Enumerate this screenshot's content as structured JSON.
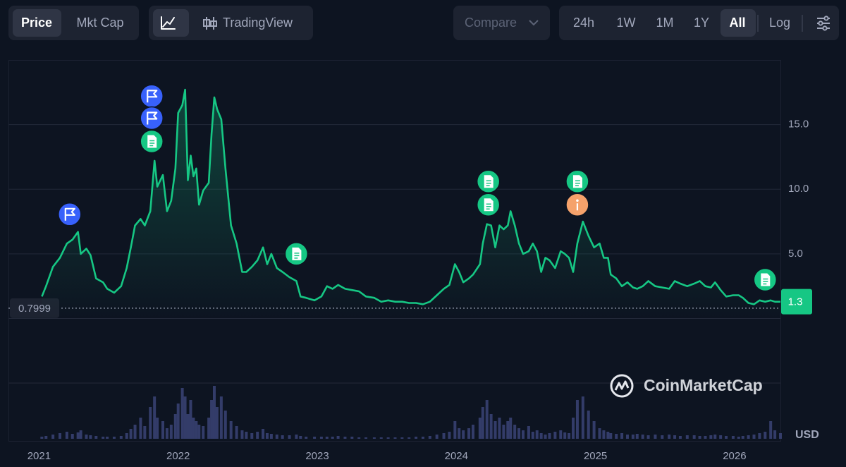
{
  "toolbar": {
    "views": [
      "Price",
      "Mkt Cap"
    ],
    "tradingview": "TradingView",
    "compare": "Compare",
    "ranges": [
      "24h",
      "1W",
      "1M",
      "1Y",
      "All"
    ],
    "log": "Log"
  },
  "chart_data": {
    "type": "line",
    "x": [
      2021.02,
      2021.05,
      2021.1,
      2021.15,
      2021.2,
      2021.24,
      2021.28,
      2021.3,
      2021.34,
      2021.37,
      2021.41,
      2021.46,
      2021.49,
      2021.54,
      2021.59,
      2021.63,
      2021.66,
      2021.69,
      2021.73,
      2021.76,
      2021.8,
      2021.83,
      2021.85,
      2021.89,
      2021.92,
      2021.95,
      2021.98,
      2022.0,
      2022.03,
      2022.05,
      2022.07,
      2022.09,
      2022.11,
      2022.13,
      2022.15,
      2022.18,
      2022.22,
      2022.24,
      2022.26,
      2022.28,
      2022.31,
      2022.34,
      2022.38,
      2022.42,
      2022.46,
      2022.49,
      2022.53,
      2022.57,
      2022.61,
      2022.64,
      2022.67,
      2022.71,
      2022.75,
      2022.8,
      2022.85,
      2022.88,
      2022.92,
      2022.98,
      2023.03,
      2023.07,
      2023.11,
      2023.15,
      2023.2,
      2023.25,
      2023.3,
      2023.35,
      2023.41,
      2023.46,
      2023.51,
      2023.56,
      2023.61,
      2023.66,
      2023.71,
      2023.76,
      2023.81,
      2023.86,
      2023.91,
      2023.95,
      2023.99,
      2024.02,
      2024.05,
      2024.09,
      2024.12,
      2024.17,
      2024.19,
      2024.22,
      2024.25,
      2024.28,
      2024.31,
      2024.34,
      2024.37,
      2024.39,
      2024.42,
      2024.45,
      2024.48,
      2024.52,
      2024.55,
      2024.58,
      2024.61,
      2024.64,
      2024.67,
      2024.71,
      2024.75,
      2024.78,
      2024.81,
      2024.84,
      2024.87,
      2024.91,
      2024.95,
      2024.99,
      2025.03,
      2025.06,
      2025.09,
      2025.11,
      2025.15,
      2025.19,
      2025.23,
      2025.27,
      2025.3,
      2025.34,
      2025.38,
      2025.43,
      2025.48,
      2025.53,
      2025.57,
      2025.61,
      2025.66,
      2025.71,
      2025.75,
      2025.79,
      2025.83,
      2025.86,
      2025.9,
      2025.94,
      2025.99,
      2026.03,
      2026.06,
      2026.1,
      2026.14,
      2026.18,
      2026.22,
      2026.26,
      2026.29,
      2026.33
    ],
    "series": [
      {
        "color": "#16c784",
        "values": [
          1.7,
          2.5,
          4.0,
          4.7,
          5.8,
          6.1,
          6.7,
          5.0,
          5.4,
          4.9,
          3.1,
          2.8,
          2.3,
          2.0,
          2.5,
          3.9,
          5.5,
          7.2,
          7.7,
          7.2,
          8.3,
          12.2,
          10.2,
          11.1,
          8.3,
          9.1,
          11.6,
          15.9,
          16.5,
          17.7,
          10.7,
          12.6,
          11.0,
          11.6,
          8.8,
          9.9,
          10.5,
          14.3,
          17.1,
          16.2,
          15.4,
          11.6,
          7.2,
          5.8,
          3.6,
          3.6,
          4.0,
          4.5,
          5.5,
          4.2,
          5.0,
          3.9,
          3.6,
          3.2,
          2.9,
          1.7,
          1.6,
          1.4,
          1.7,
          2.5,
          2.3,
          2.6,
          2.3,
          2.2,
          2.1,
          1.7,
          1.6,
          1.3,
          1.4,
          1.3,
          1.3,
          1.2,
          1.2,
          1.1,
          1.3,
          1.8,
          2.3,
          2.6,
          4.2,
          3.6,
          2.8,
          3.1,
          3.4,
          4.2,
          5.8,
          7.3,
          7.2,
          5.5,
          7.2,
          6.9,
          7.2,
          8.3,
          7.2,
          5.8,
          5.0,
          5.2,
          5.8,
          5.2,
          3.6,
          4.7,
          4.5,
          3.9,
          5.2,
          5.0,
          4.7,
          3.6,
          5.8,
          7.5,
          6.4,
          5.5,
          5.8,
          4.7,
          4.7,
          3.4,
          3.1,
          2.5,
          2.8,
          2.4,
          2.3,
          2.5,
          2.9,
          2.5,
          2.4,
          2.3,
          2.9,
          2.7,
          2.5,
          2.7,
          2.9,
          2.5,
          2.4,
          2.8,
          2.2,
          1.7,
          1.8,
          1.8,
          1.6,
          1.2,
          1.1,
          1.4,
          1.3,
          1.4,
          1.3,
          1.3
        ]
      }
    ],
    "volume": {
      "color": "#3b4375",
      "values": [
        3,
        4,
        6,
        8,
        10,
        7,
        9,
        12,
        6,
        5,
        4,
        3,
        3,
        3,
        4,
        8,
        14,
        20,
        30,
        18,
        45,
        60,
        30,
        25,
        15,
        20,
        35,
        50,
        72,
        60,
        35,
        55,
        30,
        25,
        20,
        18,
        30,
        55,
        75,
        45,
        60,
        40,
        25,
        18,
        12,
        10,
        8,
        10,
        14,
        8,
        7,
        6,
        5,
        5,
        6,
        4,
        3,
        3,
        3,
        3,
        3,
        4,
        3,
        3,
        2,
        2,
        2,
        2,
        2,
        2,
        2,
        2,
        3,
        3,
        4,
        6,
        8,
        10,
        25,
        15,
        12,
        15,
        20,
        30,
        45,
        55,
        35,
        25,
        30,
        20,
        25,
        30,
        20,
        15,
        12,
        18,
        10,
        12,
        8,
        6,
        8,
        10,
        12,
        9,
        8,
        30,
        55,
        60,
        40,
        25,
        15,
        12,
        10,
        8,
        7,
        8,
        6,
        6,
        7,
        6,
        5,
        6,
        5,
        6,
        5,
        4,
        5,
        5,
        4,
        4,
        5,
        6,
        5,
        4,
        4,
        3,
        4,
        5,
        6,
        8,
        10,
        25,
        12,
        8
      ]
    },
    "xlim": [
      2020.78,
      2026.33
    ],
    "xticks": [
      2021,
      2022,
      2023,
      2024,
      2025,
      2026
    ],
    "ylim": [
      0,
      20
    ],
    "yticks": [
      {
        "value": 5,
        "label": "5.0"
      },
      {
        "value": 10,
        "label": "10.0"
      },
      {
        "value": 15,
        "label": "15.0"
      }
    ],
    "grid": true,
    "reference_value": 0.7999,
    "last_price": 1.3,
    "unit_label": "USD",
    "watermark": "CoinMarketCap",
    "events": [
      {
        "x": 2021.22,
        "y": 8.06,
        "icon": "flag"
      },
      {
        "x": 2021.81,
        "y": 17.2,
        "icon": "flag"
      },
      {
        "x": 2021.81,
        "y": 15.5,
        "icon": "flag"
      },
      {
        "x": 2021.81,
        "y": 13.7,
        "icon": "doc"
      },
      {
        "x": 2022.85,
        "y": 5.0,
        "icon": "doc"
      },
      {
        "x": 2024.23,
        "y": 10.6,
        "icon": "doc"
      },
      {
        "x": 2024.23,
        "y": 8.8,
        "icon": "doc"
      },
      {
        "x": 2024.87,
        "y": 10.6,
        "icon": "doc"
      },
      {
        "x": 2024.87,
        "y": 8.8,
        "icon": "info"
      },
      {
        "x": 2026.22,
        "y": 3.0,
        "icon": "doc"
      }
    ]
  }
}
